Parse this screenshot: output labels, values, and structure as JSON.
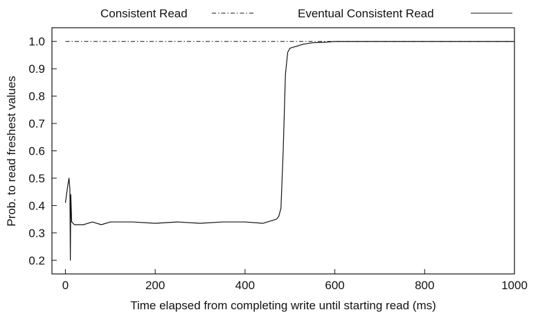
{
  "chart_data": {
    "type": "line",
    "title": "",
    "xlabel": "Time elapsed from completing write until starting read (ms)",
    "ylabel": "Prob. to read freshest values",
    "xlim": [
      -30,
      1000
    ],
    "ylim": [
      0.15,
      1.05
    ],
    "x_ticks": [
      0,
      200,
      400,
      600,
      800,
      1000
    ],
    "y_ticks": [
      0.2,
      0.3,
      0.4,
      0.5,
      0.6,
      0.7,
      0.8,
      0.9,
      1.0
    ],
    "x_tick_labels": [
      "0",
      "200",
      "400",
      "600",
      "800",
      "1000"
    ],
    "y_tick_labels": [
      "0.2",
      "0.3",
      "0.4",
      "0.5",
      "0.6",
      "0.7",
      "0.8",
      "0.9",
      "1.0"
    ],
    "grid": false,
    "legend_position": "top",
    "series": [
      {
        "name": "Consistent Read",
        "style": "dash-dot",
        "color": "#111111",
        "x": [
          0,
          1000
        ],
        "y": [
          1.0,
          1.0
        ]
      },
      {
        "name": "Eventual Consistent Read",
        "style": "solid",
        "color": "#111111",
        "x": [
          0,
          5,
          8,
          10,
          11,
          12,
          14,
          20,
          40,
          60,
          80,
          100,
          150,
          200,
          250,
          300,
          350,
          400,
          440,
          460,
          470,
          475,
          480,
          485,
          490,
          495,
          500,
          510,
          520,
          530,
          550,
          580,
          600,
          650,
          700,
          800,
          900,
          1000
        ],
        "y": [
          0.41,
          0.47,
          0.5,
          0.46,
          0.2,
          0.44,
          0.34,
          0.33,
          0.33,
          0.34,
          0.33,
          0.34,
          0.34,
          0.335,
          0.34,
          0.335,
          0.34,
          0.34,
          0.335,
          0.345,
          0.35,
          0.36,
          0.39,
          0.6,
          0.88,
          0.96,
          0.975,
          0.98,
          0.985,
          0.99,
          0.995,
          0.997,
          1.0,
          1.0,
          1.0,
          1.0,
          1.0,
          1.0
        ]
      }
    ]
  }
}
